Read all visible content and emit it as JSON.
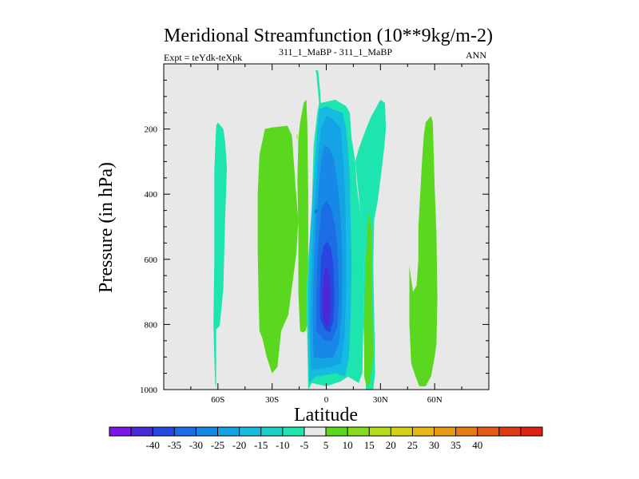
{
  "chart_data": {
    "type": "contour",
    "title": "Meridional Streamfunction (10**9kg/m-2)",
    "subtitle_left": "Expt = teYdk-teXpk",
    "subtitle_super": "311_1_MaBP - 311_1_MaBP",
    "subtitle_right": "ANN",
    "xlabel": "Latitude",
    "ylabel": "Pressure (in hPa)",
    "xlim": [
      -90,
      90
    ],
    "ylim": [
      1000,
      0
    ],
    "x_ticks": [
      {
        "value": -60,
        "label": "60S"
      },
      {
        "value": -30,
        "label": "30S"
      },
      {
        "value": 0,
        "label": "0"
      },
      {
        "value": 30,
        "label": "30N"
      },
      {
        "value": 60,
        "label": "60N"
      }
    ],
    "y_ticks": [
      {
        "value": 200,
        "label": "200"
      },
      {
        "value": 400,
        "label": "400"
      },
      {
        "value": 600,
        "label": "600"
      },
      {
        "value": 800,
        "label": "800"
      },
      {
        "value": 1000,
        "label": "1000"
      }
    ],
    "colorbar": {
      "colors": [
        "#7a16e6",
        "#4a2ad6",
        "#2648e0",
        "#1c6ce6",
        "#1888e6",
        "#14a4e6",
        "#16bce0",
        "#1cd0c8",
        "#1ee4b0",
        "#e8e8e8",
        "#5ad820",
        "#86dc1c",
        "#b4dc1a",
        "#d6d016",
        "#e8b814",
        "#e89a14",
        "#e47c16",
        "#e25a16",
        "#e03a12",
        "#de2010"
      ],
      "labels": [
        "-40",
        "-35",
        "-30",
        "-25",
        "-20",
        "-15",
        "-10",
        "-5",
        "5",
        "10",
        "15",
        "20",
        "25",
        "30",
        "35",
        "40"
      ]
    },
    "background_color": "#e8e8e8",
    "regions": [
      {
        "name": "band-60s-left",
        "level": -5,
        "color": "#1ee4b0",
        "points": [
          [
            -61,
            815
          ],
          [
            -59,
            805
          ],
          [
            -57,
            690
          ],
          [
            -56,
            470
          ],
          [
            -55,
            320
          ],
          [
            -56,
            240
          ],
          [
            -57,
            200
          ],
          [
            -60,
            180
          ],
          [
            -61,
            190
          ],
          [
            -62,
            330
          ],
          [
            -62,
            600
          ],
          [
            -62.5,
            800
          ],
          [
            -62,
            900
          ],
          [
            -61.5,
            980
          ],
          [
            -61,
            995
          ]
        ]
      },
      {
        "name": "band-35s-green",
        "level": 5,
        "color": "#5ad820",
        "points": [
          [
            -37,
            820
          ],
          [
            -35.5,
            840
          ],
          [
            -33,
            900
          ],
          [
            -30,
            950
          ],
          [
            -27,
            930
          ],
          [
            -25,
            820
          ],
          [
            -21,
            770
          ],
          [
            -16.5,
            580
          ],
          [
            -15.5,
            480
          ],
          [
            -17,
            380
          ],
          [
            -19,
            220
          ],
          [
            -21.5,
            190
          ],
          [
            -30,
            195
          ],
          [
            -34,
            200
          ],
          [
            -37,
            280
          ],
          [
            -38,
            400
          ],
          [
            -38,
            560
          ],
          [
            -37.5,
            720
          ]
        ]
      },
      {
        "name": "band-15s-green",
        "level": 5,
        "color": "#5ad820",
        "points": [
          [
            -14.5,
            820
          ],
          [
            -15.5,
            700
          ],
          [
            -15.5,
            500
          ],
          [
            -16,
            360
          ],
          [
            -15.5,
            230
          ],
          [
            -14.5,
            180
          ],
          [
            -12.5,
            120
          ],
          [
            -11,
            110
          ],
          [
            -10.5,
            190
          ],
          [
            -10,
            400
          ],
          [
            -10,
            620
          ],
          [
            -10.5,
            800
          ],
          [
            -11.5,
            820
          ],
          [
            -13,
            825
          ]
        ]
      },
      {
        "name": "core-outer",
        "level": -5,
        "color": "#1ee4b0",
        "points": [
          [
            -10,
            1000
          ],
          [
            -10.5,
            860
          ],
          [
            -11,
            700
          ],
          [
            -10,
            600
          ],
          [
            -8,
            440
          ],
          [
            -7,
            250
          ],
          [
            -5,
            150
          ],
          [
            -4,
            120
          ],
          [
            -5,
            60
          ],
          [
            -5.5,
            30
          ],
          [
            -6,
            20
          ],
          [
            -4.5,
            20
          ],
          [
            -3.5,
            80
          ],
          [
            -3,
            120
          ],
          [
            5,
            110
          ],
          [
            8,
            120
          ],
          [
            11,
            130
          ],
          [
            13,
            150
          ],
          [
            14,
            230
          ],
          [
            15,
            260
          ],
          [
            16,
            300
          ],
          [
            17,
            380
          ],
          [
            19,
            460
          ],
          [
            22,
            520
          ],
          [
            21,
            600
          ],
          [
            20.5,
            800
          ],
          [
            20,
            950
          ],
          [
            18,
            980
          ],
          [
            12,
            960
          ],
          [
            8,
            975
          ],
          [
            0,
            990
          ],
          [
            -8,
            980
          ]
        ]
      },
      {
        "name": "core-10",
        "level": -10,
        "color": "#16bce0",
        "points": [
          [
            -9.5,
            980
          ],
          [
            -10,
            800
          ],
          [
            -10,
            680
          ],
          [
            -9,
            540
          ],
          [
            -7.5,
            400
          ],
          [
            -6,
            280
          ],
          [
            -5,
            200
          ],
          [
            -4,
            140
          ],
          [
            0,
            130
          ],
          [
            4,
            140
          ],
          [
            9,
            150
          ],
          [
            11,
            200
          ],
          [
            12,
            260
          ],
          [
            13,
            340
          ],
          [
            13.5,
            480
          ],
          [
            14,
            620
          ],
          [
            13.5,
            780
          ],
          [
            12.5,
            900
          ],
          [
            10.5,
            960
          ],
          [
            5,
            950
          ],
          [
            0,
            955
          ],
          [
            -6,
            960
          ]
        ]
      },
      {
        "name": "core-15",
        "level": -15,
        "color": "#14a4e6",
        "points": [
          [
            -8.5,
            940
          ],
          [
            -9,
            800
          ],
          [
            -8.5,
            680
          ],
          [
            -7.5,
            540
          ],
          [
            -6,
            400
          ],
          [
            -4.5,
            280
          ],
          [
            -3,
            200
          ],
          [
            0,
            160
          ],
          [
            4,
            170
          ],
          [
            8,
            200
          ],
          [
            9.5,
            300
          ],
          [
            10.5,
            420
          ],
          [
            11,
            560
          ],
          [
            11,
            720
          ],
          [
            10,
            850
          ],
          [
            8,
            920
          ],
          [
            3,
            930
          ],
          [
            -3,
            935
          ]
        ]
      },
      {
        "name": "core-20",
        "level": -20,
        "color": "#1888e6",
        "points": [
          [
            -7,
            900
          ],
          [
            -7.5,
            780
          ],
          [
            -7,
            640
          ],
          [
            -6,
            520
          ],
          [
            -4.5,
            400
          ],
          [
            -3,
            300
          ],
          [
            -1,
            250
          ],
          [
            2,
            260
          ],
          [
            4.5,
            300
          ],
          [
            6.5,
            380
          ],
          [
            8,
            480
          ],
          [
            9,
            620
          ],
          [
            8.5,
            760
          ],
          [
            7,
            860
          ],
          [
            4,
            900
          ],
          [
            -2,
            905
          ]
        ]
      },
      {
        "name": "core-25",
        "level": -25,
        "color": "#1c6ce6",
        "points": [
          [
            -5.5,
            820
          ],
          [
            -5.5,
            720
          ],
          [
            -5,
            600
          ],
          [
            -4,
            520
          ],
          [
            -2.5,
            440
          ],
          [
            0,
            420
          ],
          [
            2.5,
            440
          ],
          [
            5,
            500
          ],
          [
            6.5,
            600
          ],
          [
            7,
            720
          ],
          [
            6,
            810
          ],
          [
            3,
            850
          ],
          [
            -1,
            850
          ]
        ]
      },
      {
        "name": "core-30",
        "level": -30,
        "color": "#2648e0",
        "points": [
          [
            -3.5,
            780
          ],
          [
            -3.5,
            700
          ],
          [
            -3,
            600
          ],
          [
            -1.5,
            560
          ],
          [
            0.5,
            545
          ],
          [
            2.5,
            565
          ],
          [
            4,
            620
          ],
          [
            4.5,
            720
          ],
          [
            3.8,
            790
          ],
          [
            2,
            825
          ],
          [
            -1,
            815
          ]
        ]
      },
      {
        "name": "core-35",
        "level": -35,
        "color": "#4a2ad6",
        "points": [
          [
            -2,
            760
          ],
          [
            -2,
            700
          ],
          [
            -1.5,
            650
          ],
          [
            0,
            620
          ],
          [
            1.5,
            640
          ],
          [
            2.5,
            700
          ],
          [
            2.5,
            760
          ],
          [
            1.5,
            800
          ],
          [
            0,
            810
          ],
          [
            -1.5,
            790
          ]
        ]
      },
      {
        "name": "dot-blue",
        "level": -25,
        "color": "#1c6ce6",
        "points": [
          [
            -6.5,
            450
          ],
          [
            -5.5,
            445
          ],
          [
            -5,
            452
          ],
          [
            -5.5,
            460
          ],
          [
            -6.5,
            458
          ]
        ]
      },
      {
        "name": "band-30n-right",
        "level": -5,
        "color": "#1ee4b0",
        "points": [
          [
            26.5,
            480
          ],
          [
            28.5,
            420
          ],
          [
            30.5,
            330
          ],
          [
            32,
            260
          ],
          [
            33,
            200
          ],
          [
            32.5,
            120
          ],
          [
            30,
            110
          ],
          [
            28,
            130
          ],
          [
            25,
            160
          ],
          [
            22,
            200
          ],
          [
            18,
            260
          ],
          [
            16,
            300
          ],
          [
            19,
            460
          ],
          [
            22,
            520
          ],
          [
            21,
            600
          ],
          [
            20.5,
            800
          ],
          [
            22,
            1000
          ],
          [
            26,
            1000
          ],
          [
            27,
            950
          ],
          [
            26.5,
            760
          ],
          [
            26,
            620
          ]
        ]
      },
      {
        "name": "band-30n-green",
        "level": 5,
        "color": "#5ad820",
        "points": [
          [
            23,
            480
          ],
          [
            24,
            460
          ],
          [
            25,
            520
          ],
          [
            25,
            640
          ],
          [
            25.5,
            760
          ],
          [
            26,
            900
          ],
          [
            24,
            980
          ],
          [
            22.5,
            995
          ],
          [
            21,
            960
          ],
          [
            21,
            800
          ],
          [
            21.5,
            640
          ],
          [
            22.5,
            540
          ]
        ]
      },
      {
        "name": "band-60n-green",
        "level": 5,
        "color": "#5ad820",
        "points": [
          [
            48,
            700
          ],
          [
            50,
            680
          ],
          [
            51,
            600
          ],
          [
            51,
            500
          ],
          [
            52,
            400
          ],
          [
            53,
            300
          ],
          [
            54,
            220
          ],
          [
            55,
            180
          ],
          [
            58,
            160
          ],
          [
            59,
            180
          ],
          [
            60,
            380
          ],
          [
            61,
            520
          ],
          [
            61.5,
            720
          ],
          [
            61,
            860
          ],
          [
            60,
            900
          ],
          [
            58,
            960
          ],
          [
            55,
            990
          ],
          [
            51.5,
            990
          ],
          [
            49.5,
            960
          ],
          [
            47,
            920
          ],
          [
            46,
            800
          ],
          [
            46,
            620
          ]
        ]
      },
      {
        "name": "speck-1",
        "level": 15,
        "color": "#b4dc1a",
        "points": [
          [
            -16.5,
            220
          ],
          [
            -16,
            215
          ],
          [
            -15.8,
            225
          ],
          [
            -16.2,
            232
          ]
        ]
      }
    ]
  }
}
